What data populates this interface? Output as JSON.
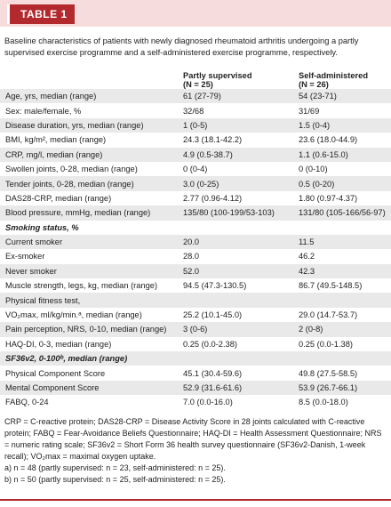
{
  "header": {
    "title": "TABLE 1"
  },
  "caption": "Baseline characteristics of patients with newly diagnosed rheumatoid arthritis undergoing a partly supervised exercise programme and a self-administered exercise programme, respectively.",
  "table": {
    "columns": [
      [
        "Partly supervised",
        "(N = 25)"
      ],
      [
        "Self-administered",
        "(N = 26)"
      ]
    ],
    "rows": [
      [
        "Age, yrs, median (range)",
        "61 (27-79)",
        "54 (23-71)"
      ],
      [
        "Sex: male/female, %",
        "32/68",
        "31/69"
      ],
      [
        "Disease duration, yrs, median (range)",
        "1 (0-5)",
        "1.5 (0-4)"
      ],
      [
        "BMI, kg/m², median (range)",
        "24.3 (18.1-42.2)",
        "23.6 (18.0-44.9)"
      ],
      [
        "CRP, mg/l, median (range)",
        "4.9 (0.5-38.7)",
        "1.1 (0.6-15.0)"
      ],
      [
        "Swollen joints, 0-28, median (range)",
        "0 (0-4)",
        "0 (0-10)"
      ],
      [
        "Tender joints, 0-28, median (range)",
        "3.0 (0-25)",
        "0.5 (0-20)"
      ],
      [
        "DAS28-CRP, median (range)",
        "2.77 (0.96-4.12)",
        "1.80 (0.97-4.37)"
      ],
      [
        "Blood pressure, mmHg, median (range)",
        "135/80 (100-199/53-103)",
        "131/80 (105-166/56-97)"
      ],
      [
        "Smoking status, %"
      ],
      [
        "Current smoker",
        "20.0",
        "11.5"
      ],
      [
        "Ex-smoker",
        "28.0",
        "46.2"
      ],
      [
        "Never smoker",
        "52.0",
        "42.3"
      ],
      [
        "Muscle strength, legs, kg, median (range)",
        "94.5 (47.3-130.5)",
        "86.7 (49.5-148.5)"
      ],
      [
        "Physical fitness test,"
      ],
      [
        "VO₂max, ml/kg/min.ᵃ, median (range)",
        "25.2 (10.1-45.0)",
        "29.0 (14.7-53.7)"
      ],
      [
        "Pain perception, NRS, 0-10, median (range)",
        "3 (0-6)",
        "2 (0-8)"
      ],
      [
        "HAQ-DI, 0-3, median (range)",
        "0.25 (0.0-2.38)",
        "0.25 (0.0-1.38)"
      ],
      [
        "SF36v2, 0-100ᵇ, median (range)"
      ],
      [
        "Physical Component Score",
        "45.1 (30.4-59.6)",
        "49.8 (27.5-58.5)"
      ],
      [
        "Mental Component Score",
        "52.9 (31.6-61.6)",
        "53.9 (26.7-66.1)"
      ],
      [
        "FABQ, 0-24",
        "7.0 (0.0-16.0)",
        "8.5 (0.0-18.0)"
      ]
    ]
  },
  "footnotes": [
    "CRP = C-reactive protein; DAS28-CRP = Disease Activity Score in 28 joints calculated with C-reactive protein; FABQ = Fear-Avoidance Beliefs Questionnaire; HAQ-DI = Health Assessment Questionnaire; NRS = numeric rating scale; SF36v2 = Short Form 36 health survey questionnaire (SF36v2-Danish, 1-week recall); VO₂max = maximal oxygen uptake.",
    "a) n = 48 (partly supervised: n = 23, self-administered: n = 25).",
    "b) n = 50 (partly supervised: n = 25, self-administered: n = 25)."
  ]
}
